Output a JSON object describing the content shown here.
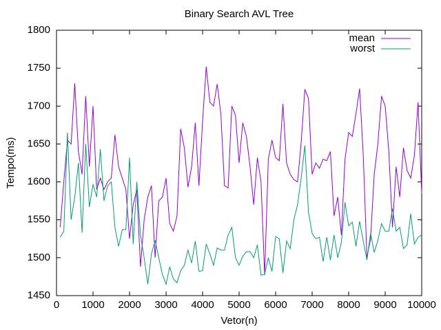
{
  "chart_data": {
    "type": "line",
    "title": "Binary Search AVL Tree",
    "xlabel": "Vetor(n)",
    "ylabel": "Tempo(ms)",
    "x": [
      100,
      200,
      300,
      400,
      500,
      600,
      700,
      800,
      900,
      1000,
      1100,
      1200,
      1300,
      1400,
      1500,
      1600,
      1700,
      1800,
      1900,
      2000,
      2100,
      2200,
      2300,
      2400,
      2500,
      2600,
      2700,
      2800,
      2900,
      3000,
      3100,
      3200,
      3300,
      3400,
      3500,
      3600,
      3700,
      3800,
      3900,
      4000,
      4100,
      4200,
      4300,
      4400,
      4500,
      4600,
      4700,
      4800,
      4900,
      5000,
      5100,
      5200,
      5300,
      5400,
      5500,
      5600,
      5700,
      5800,
      5900,
      6000,
      6100,
      6200,
      6300,
      6400,
      6500,
      6600,
      6700,
      6800,
      6900,
      7000,
      7100,
      7200,
      7300,
      7400,
      7500,
      7600,
      7700,
      7800,
      7900,
      8000,
      8100,
      8200,
      8300,
      8400,
      8500,
      8600,
      8700,
      8800,
      8900,
      9000,
      9100,
      9200,
      9300,
      9400,
      9500,
      9600,
      9700,
      9800,
      9900,
      10000
    ],
    "series": [
      {
        "name": "mean",
        "color": "#9400d3",
        "values": [
          1540,
          1600,
          1655,
          1650,
          1730,
          1640,
          1610,
          1713,
          1620,
          1700,
          1590,
          1605,
          1590,
          1600,
          1605,
          1662,
          1620,
          1605,
          1590,
          1525,
          1570,
          1590,
          1488,
          1550,
          1580,
          1595,
          1500,
          1575,
          1580,
          1605,
          1545,
          1535,
          1555,
          1670,
          1645,
          1593,
          1620,
          1678,
          1595,
          1680,
          1752,
          1705,
          1700,
          1729,
          1690,
          1595,
          1592,
          1700,
          1688,
          1625,
          1678,
          1660,
          1620,
          1570,
          1632,
          1600,
          1477,
          1630,
          1655,
          1632,
          1628,
          1703,
          1625,
          1610,
          1603,
          1600,
          1652,
          1722,
          1710,
          1610,
          1625,
          1618,
          1630,
          1628,
          1640,
          1555,
          1580,
          1530,
          1630,
          1665,
          1660,
          1690,
          1723,
          1635,
          1500,
          1525,
          1610,
          1650,
          1713,
          1700,
          1640,
          1540,
          1620,
          1580,
          1645,
          1615,
          1605,
          1635,
          1705,
          1585
        ]
      },
      {
        "name": "worst",
        "color": "#009e73",
        "values": [
          1527,
          1535,
          1665,
          1550,
          1580,
          1625,
          1533,
          1650,
          1567,
          1597,
          1580,
          1643,
          1575,
          1595,
          1600,
          1540,
          1515,
          1537,
          1537,
          1632,
          1518,
          1600,
          1530,
          1500,
          1465,
          1505,
          1523,
          1500,
          1478,
          1465,
          1488,
          1472,
          1467,
          1483,
          1490,
          1510,
          1493,
          1522,
          1482,
          1483,
          1518,
          1505,
          1490,
          1513,
          1510,
          1510,
          1530,
          1540,
          1500,
          1490,
          1502,
          1508,
          1508,
          1500,
          1517,
          1477,
          1478,
          1500,
          1482,
          1528,
          1525,
          1480,
          1522,
          1512,
          1550,
          1570,
          1605,
          1648,
          1560,
          1532,
          1525,
          1527,
          1495,
          1527,
          1497,
          1530,
          1500,
          1520,
          1573,
          1542,
          1547,
          1515,
          1548,
          1522,
          1497,
          1532,
          1507,
          1523,
          1545,
          1535,
          1535,
          1565,
          1535,
          1540,
          1512,
          1517,
          1558,
          1518,
          1527,
          1530
        ]
      }
    ],
    "xlim": [
      0,
      10000
    ],
    "xticks": [
      0,
      1000,
      2000,
      3000,
      4000,
      5000,
      6000,
      7000,
      8000,
      9000,
      10000
    ],
    "ylim": [
      1450,
      1800
    ],
    "yticks": [
      1450,
      1500,
      1550,
      1600,
      1650,
      1700,
      1750,
      1800
    ],
    "legend": "upper right",
    "grid": false
  }
}
